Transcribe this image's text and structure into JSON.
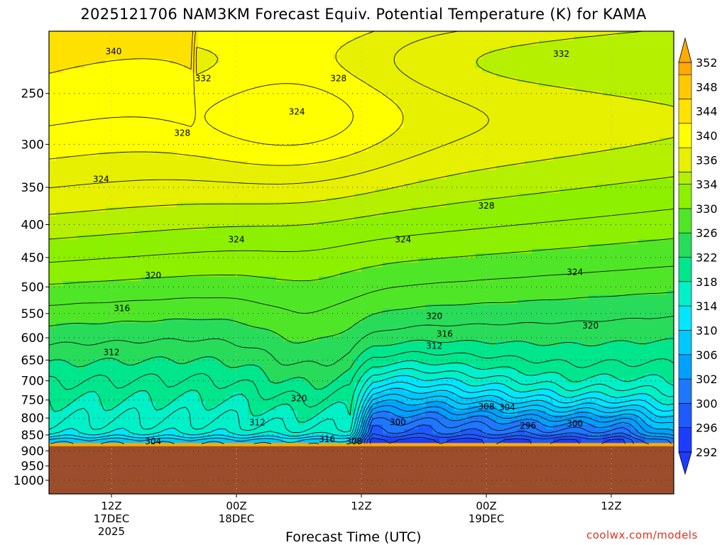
{
  "title": "2025121706 NAM3KM Forecast Equiv. Potential Temperature (K) for KAMA",
  "credit": "coolwx.com/models",
  "chart_data": {
    "type": "heatmap",
    "title": "2025121706 NAM3KM Forecast Equiv. Potential Temperature (K) for KAMA",
    "xlabel": "Forecast Time (UTC)",
    "ylabel": "",
    "y_axis": {
      "ticks": [
        250,
        300,
        350,
        400,
        450,
        500,
        550,
        600,
        650,
        700,
        750,
        800,
        850,
        900,
        950,
        1000
      ],
      "range_hpa": [
        200,
        1050
      ],
      "orientation": "pressure decreasing upward"
    },
    "x_axis": {
      "range_hours": [
        0,
        60
      ],
      "ticks": [
        {
          "hour": 6,
          "line1": "12Z",
          "line2": "17DEC",
          "line3": "2025"
        },
        {
          "hour": 18,
          "line1": "00Z",
          "line2": "18DEC",
          "line3": ""
        },
        {
          "hour": 30,
          "line1": "12Z",
          "line2": "",
          "line3": ""
        },
        {
          "hour": 42,
          "line1": "00Z",
          "line2": "19DEC",
          "line3": ""
        },
        {
          "hour": 54,
          "line1": "12Z",
          "line2": "",
          "line3": ""
        }
      ]
    },
    "grid": true,
    "ground_color": "#9c4d2c",
    "surface_pressure_hpa": 885,
    "colorbar": {
      "position": "right",
      "min": 290,
      "max": 354,
      "labels": [
        352,
        348,
        344,
        340,
        336,
        334,
        330,
        326,
        322,
        318,
        314,
        310,
        306,
        302,
        300,
        296,
        292
      ],
      "bands": [
        {
          "lo": 290,
          "hi": 294,
          "color": "#1e3cff"
        },
        {
          "lo": 294,
          "hi": 298,
          "color": "#1e5aff"
        },
        {
          "lo": 298,
          "hi": 302,
          "color": "#1e78ff"
        },
        {
          "lo": 302,
          "hi": 306,
          "color": "#00a0ff"
        },
        {
          "lo": 306,
          "hi": 310,
          "color": "#00c8ff"
        },
        {
          "lo": 310,
          "hi": 314,
          "color": "#00e6ff"
        },
        {
          "lo": 314,
          "hi": 318,
          "color": "#00f0c8"
        },
        {
          "lo": 318,
          "hi": 322,
          "color": "#00e68c"
        },
        {
          "lo": 322,
          "hi": 326,
          "color": "#28dc5a"
        },
        {
          "lo": 326,
          "hi": 330,
          "color": "#50e628"
        },
        {
          "lo": 330,
          "hi": 334,
          "color": "#8cf000"
        },
        {
          "lo": 334,
          "hi": 336,
          "color": "#b4f000"
        },
        {
          "lo": 336,
          "hi": 340,
          "color": "#e6f000"
        },
        {
          "lo": 340,
          "hi": 344,
          "color": "#ffff00"
        },
        {
          "lo": 344,
          "hi": 348,
          "color": "#ffe100"
        },
        {
          "lo": 348,
          "hi": 352,
          "color": "#ffc800"
        },
        {
          "lo": 352,
          "hi": 354,
          "color": "#ffaa00"
        }
      ]
    },
    "contour_labels": [
      {
        "text": "340",
        "hour": 6.2,
        "p": 215
      },
      {
        "text": "332",
        "hour": 14.8,
        "p": 237
      },
      {
        "text": "328",
        "hour": 27.8,
        "p": 237
      },
      {
        "text": "332",
        "hour": 49.2,
        "p": 217
      },
      {
        "text": "324",
        "hour": 23.8,
        "p": 267
      },
      {
        "text": "328",
        "hour": 12.8,
        "p": 288
      },
      {
        "text": "324",
        "hour": 5.0,
        "p": 340
      },
      {
        "text": "328",
        "hour": 42.0,
        "p": 374
      },
      {
        "text": "324",
        "hour": 18.0,
        "p": 422
      },
      {
        "text": "324",
        "hour": 34.0,
        "p": 422
      },
      {
        "text": "324",
        "hour": 50.5,
        "p": 474
      },
      {
        "text": "320",
        "hour": 10.0,
        "p": 480
      },
      {
        "text": "316",
        "hour": 7.0,
        "p": 540
      },
      {
        "text": "320",
        "hour": 37.0,
        "p": 555
      },
      {
        "text": "316",
        "hour": 38.0,
        "p": 592
      },
      {
        "text": "320",
        "hour": 52.0,
        "p": 575
      },
      {
        "text": "312",
        "hour": 6.0,
        "p": 632
      },
      {
        "text": "312",
        "hour": 37.0,
        "p": 618
      },
      {
        "text": "320",
        "hour": 24.0,
        "p": 746
      },
      {
        "text": "308",
        "hour": 42.0,
        "p": 768
      },
      {
        "text": "304",
        "hour": 44.0,
        "p": 770
      },
      {
        "text": "312",
        "hour": 20.0,
        "p": 813
      },
      {
        "text": "300",
        "hour": 33.5,
        "p": 812
      },
      {
        "text": "296",
        "hour": 46.0,
        "p": 823
      },
      {
        "text": "300",
        "hour": 50.5,
        "p": 816
      },
      {
        "text": "304",
        "hour": 10.0,
        "p": 870
      },
      {
        "text": "316",
        "hour": 26.7,
        "p": 863
      },
      {
        "text": "308",
        "hour": 29.3,
        "p": 870
      }
    ]
  }
}
